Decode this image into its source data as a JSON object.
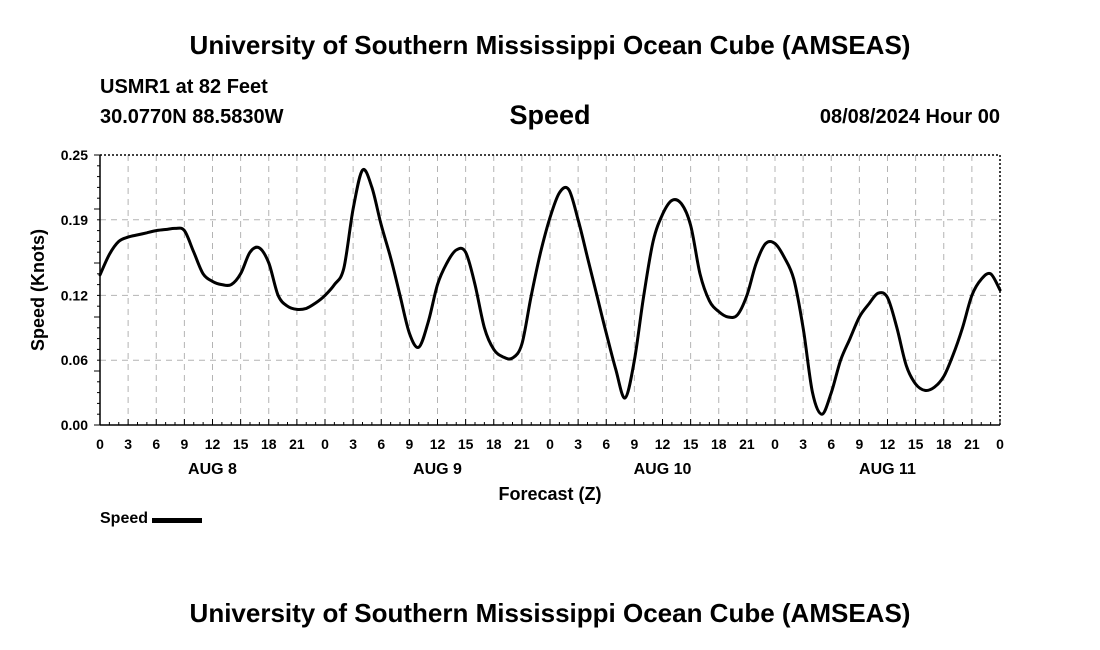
{
  "header": {
    "title": "University of Southern Mississippi Ocean Cube (AMSEAS)",
    "station": "USMR1 at 82 Feet",
    "coordinates": "30.0770N  88.5830W",
    "parameter": "Speed",
    "datetime": "08/08/2024 Hour 00"
  },
  "footer": {
    "title": "University of Southern Mississippi Ocean Cube (AMSEAS)"
  },
  "legend": {
    "label": "Speed"
  },
  "colors": {
    "line": "#000000",
    "grid": "#b4b4b4",
    "axis": "#000000"
  },
  "chart_data": {
    "type": "line",
    "title": "Speed",
    "xlabel": "Forecast (Z)",
    "ylabel": "Speed (Knots)",
    "xlim": [
      0,
      96
    ],
    "ylim": [
      0,
      0.25
    ],
    "grid": true,
    "legend_position": "bottom-left",
    "yticks": [
      0,
      0.06,
      0.12,
      0.19,
      0.25
    ],
    "ytick_labels": [
      "0.00",
      "0.06",
      "0.12",
      "0.19",
      "0.25"
    ],
    "xticks": [
      0,
      3,
      6,
      9,
      12,
      15,
      18,
      21,
      24,
      27,
      30,
      33,
      36,
      39,
      42,
      45,
      48,
      51,
      54,
      57,
      60,
      63,
      66,
      69,
      72,
      75,
      78,
      81,
      84,
      87,
      90,
      93,
      96
    ],
    "xtick_labels": [
      "0",
      "3",
      "6",
      "9",
      "12",
      "15",
      "18",
      "21",
      "0",
      "3",
      "6",
      "9",
      "12",
      "15",
      "18",
      "21",
      "0",
      "3",
      "6",
      "9",
      "12",
      "15",
      "18",
      "21",
      "0",
      "3",
      "6",
      "9",
      "12",
      "15",
      "18",
      "21",
      "0"
    ],
    "day_labels": [
      {
        "label": "AUG 8",
        "x": 12
      },
      {
        "label": "AUG 9",
        "x": 36
      },
      {
        "label": "AUG 10",
        "x": 60
      },
      {
        "label": "AUG 11",
        "x": 84
      }
    ],
    "series": [
      {
        "name": "Speed",
        "x": [
          0,
          1,
          2,
          3,
          4,
          5,
          6,
          7,
          8,
          9,
          10,
          11,
          12,
          13,
          14,
          15,
          16,
          17,
          18,
          19,
          20,
          21,
          22,
          23,
          24,
          25,
          26,
          27,
          28,
          29,
          30,
          31,
          32,
          33,
          34,
          35,
          36,
          37,
          38,
          39,
          40,
          41,
          42,
          43,
          44,
          45,
          46,
          47,
          48,
          49,
          50,
          51,
          52,
          53,
          54,
          55,
          56,
          57,
          58,
          59,
          60,
          61,
          62,
          63,
          64,
          65,
          66,
          67,
          68,
          69,
          70,
          71,
          72,
          73,
          74,
          75,
          76,
          77,
          78,
          79,
          80,
          81,
          82,
          83,
          84,
          85,
          86,
          87,
          88,
          89,
          90,
          91,
          92,
          93,
          94,
          95,
          96
        ],
        "values": [
          0.139,
          0.158,
          0.17,
          0.174,
          0.176,
          0.178,
          0.18,
          0.181,
          0.182,
          0.18,
          0.16,
          0.14,
          0.133,
          0.13,
          0.13,
          0.14,
          0.16,
          0.164,
          0.15,
          0.12,
          0.11,
          0.107,
          0.108,
          0.113,
          0.12,
          0.13,
          0.145,
          0.2,
          0.236,
          0.22,
          0.185,
          0.155,
          0.12,
          0.085,
          0.072,
          0.095,
          0.13,
          0.15,
          0.162,
          0.16,
          0.13,
          0.09,
          0.07,
          0.063,
          0.062,
          0.075,
          0.12,
          0.16,
          0.192,
          0.215,
          0.218,
          0.19,
          0.155,
          0.12,
          0.085,
          0.052,
          0.025,
          0.06,
          0.12,
          0.17,
          0.195,
          0.208,
          0.205,
          0.185,
          0.14,
          0.115,
          0.105,
          0.1,
          0.102,
          0.12,
          0.15,
          0.168,
          0.168,
          0.155,
          0.135,
          0.09,
          0.03,
          0.01,
          0.03,
          0.06,
          0.08,
          0.1,
          0.112,
          0.122,
          0.118,
          0.09,
          0.055,
          0.038,
          0.032,
          0.035,
          0.045,
          0.065,
          0.09,
          0.12,
          0.135,
          0.14,
          0.125
        ]
      }
    ]
  }
}
